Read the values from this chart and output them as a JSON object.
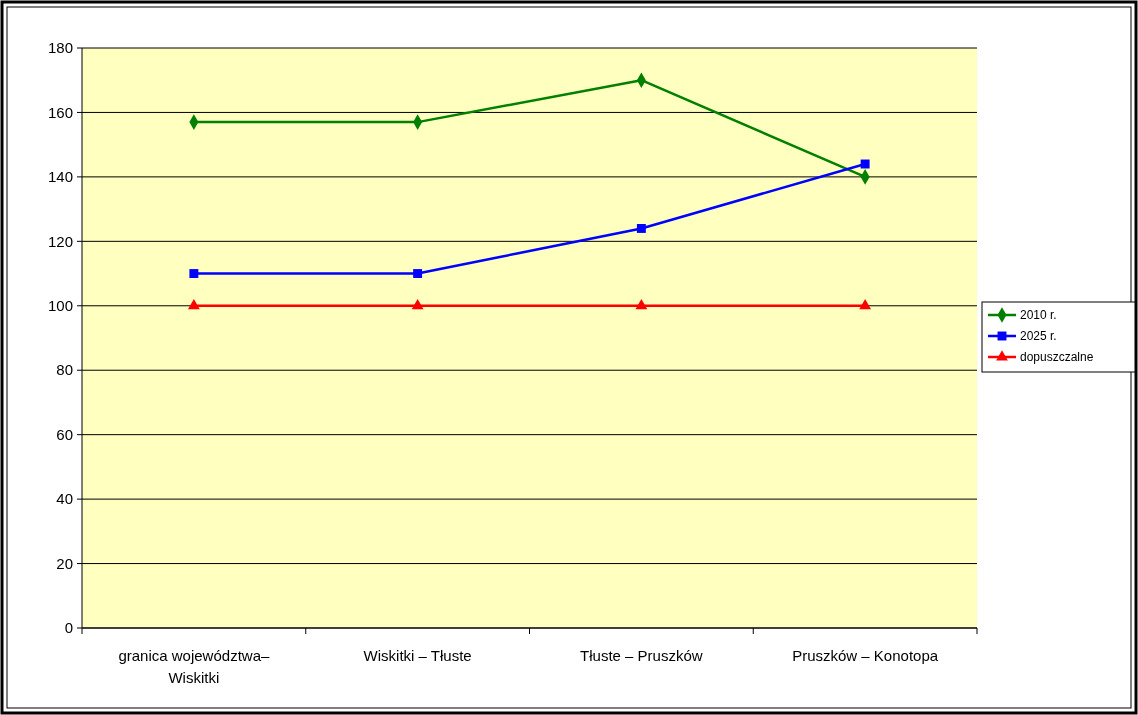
{
  "chart_data": {
    "type": "line",
    "categories": [
      "granica województwa–\nWiskitki",
      "Wiskitki – Tłuste",
      "Tłuste – Pruszków",
      "Pruszków – Konotopa"
    ],
    "series": [
      {
        "name": "2010 r.",
        "color": "#008000",
        "marker": "diamond",
        "values": [
          157,
          157,
          170,
          140
        ]
      },
      {
        "name": "2025 r.",
        "color": "#0000ff",
        "marker": "square",
        "values": [
          110,
          110,
          124,
          144
        ]
      },
      {
        "name": "dopuszczalne",
        "color": "#ff0000",
        "marker": "triangle",
        "values": [
          100,
          100,
          100,
          100
        ]
      }
    ],
    "ylim": [
      0,
      180
    ],
    "yticks": [
      0,
      20,
      40,
      60,
      80,
      100,
      120,
      140,
      160,
      180
    ],
    "grid": "y",
    "legend": "right",
    "line_style": "solid"
  }
}
